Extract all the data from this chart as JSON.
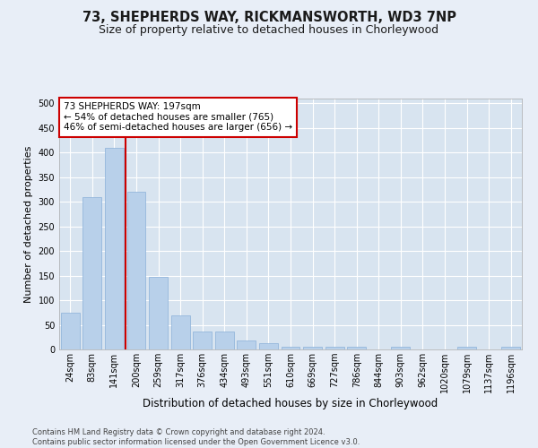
{
  "title1": "73, SHEPHERDS WAY, RICKMANSWORTH, WD3 7NP",
  "title2": "Size of property relative to detached houses in Chorleywood",
  "xlabel": "Distribution of detached houses by size in Chorleywood",
  "ylabel": "Number of detached properties",
  "categories": [
    "24sqm",
    "83sqm",
    "141sqm",
    "200sqm",
    "259sqm",
    "317sqm",
    "376sqm",
    "434sqm",
    "493sqm",
    "551sqm",
    "610sqm",
    "669sqm",
    "727sqm",
    "786sqm",
    "844sqm",
    "903sqm",
    "962sqm",
    "1020sqm",
    "1079sqm",
    "1137sqm",
    "1196sqm"
  ],
  "values": [
    75,
    310,
    410,
    320,
    148,
    70,
    36,
    36,
    18,
    12,
    5,
    6,
    6,
    5,
    0,
    5,
    0,
    0,
    5,
    0,
    5
  ],
  "bar_color": "#b8d0ea",
  "bar_edge_color": "#8ab0d8",
  "vline_x_pos": 2.5,
  "vline_color": "#cc0000",
  "annotation_text": "73 SHEPHERDS WAY: 197sqm\n← 54% of detached houses are smaller (765)\n46% of semi-detached houses are larger (656) →",
  "annotation_box_color": "#ffffff",
  "annotation_box_edge_color": "#cc0000",
  "ylim": [
    0,
    510
  ],
  "yticks": [
    0,
    50,
    100,
    150,
    200,
    250,
    300,
    350,
    400,
    450,
    500
  ],
  "background_color": "#e8eef7",
  "plot_bg_color": "#d8e4f0",
  "grid_color": "#ffffff",
  "footer": "Contains HM Land Registry data © Crown copyright and database right 2024.\nContains public sector information licensed under the Open Government Licence v3.0.",
  "title1_fontsize": 10.5,
  "title2_fontsize": 9,
  "xlabel_fontsize": 8.5,
  "ylabel_fontsize": 8,
  "tick_fontsize": 7,
  "annotation_fontsize": 7.5,
  "footer_fontsize": 6
}
